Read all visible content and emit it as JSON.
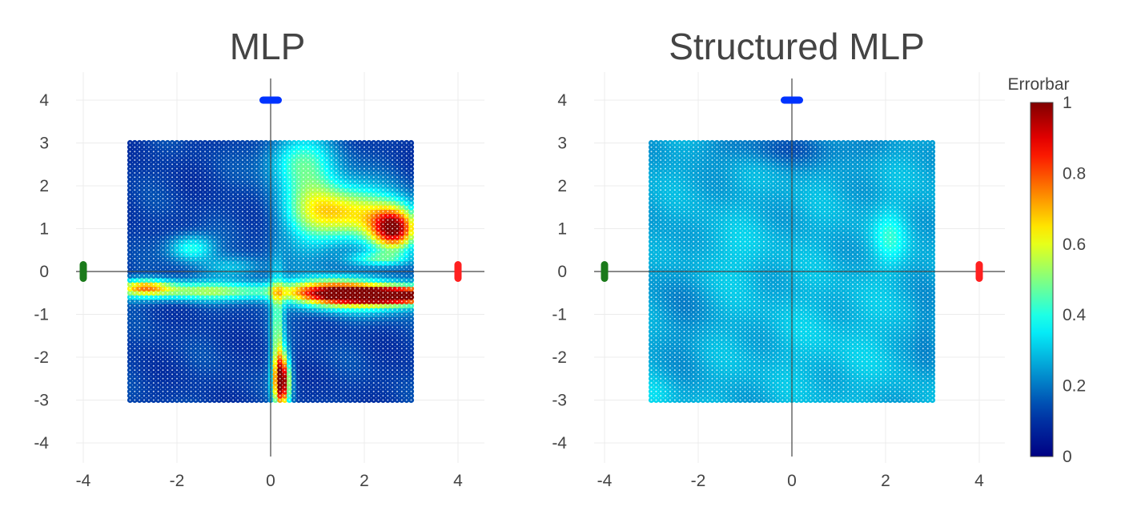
{
  "chart_data": [
    {
      "type": "heatmap",
      "title": "MLP",
      "xlim": [
        -4.4,
        4.6
      ],
      "ylim": [
        -4.3,
        4.4
      ],
      "xticks": [
        -4,
        -2,
        0,
        2,
        4
      ],
      "yticks": [
        -4,
        -3,
        -2,
        -1,
        0,
        1,
        2,
        3,
        4
      ],
      "grid": true,
      "grid_region": {
        "x": [
          -3,
          3
        ],
        "y": [
          -3,
          3
        ]
      },
      "colorscale": "jet",
      "cmin": 0,
      "cmax": 1,
      "base_value": 0.12,
      "error_features": [
        {
          "cx": 2.7,
          "cy": -0.55,
          "sx": 0.8,
          "sy": 0.14,
          "v": 0.9
        },
        {
          "cx": 1.2,
          "cy": -0.5,
          "sx": 0.6,
          "sy": 0.22,
          "v": 0.5
        },
        {
          "cx": 2.1,
          "cy": -0.55,
          "sx": 0.9,
          "sy": 0.3,
          "v": 0.35
        },
        {
          "cx": -1.4,
          "cy": -0.45,
          "sx": 1.6,
          "sy": 0.16,
          "v": 0.4
        },
        {
          "cx": -2.7,
          "cy": -0.35,
          "sx": 0.4,
          "sy": 0.13,
          "v": 0.4
        },
        {
          "cx": 2.65,
          "cy": 1.0,
          "sx": 0.35,
          "sy": 0.35,
          "v": 0.8
        },
        {
          "cx": 1.8,
          "cy": 1.4,
          "sx": 0.7,
          "sy": 0.45,
          "v": 0.45
        },
        {
          "cx": 0.9,
          "cy": 1.6,
          "sx": 0.5,
          "sy": 0.9,
          "v": 0.3
        },
        {
          "cx": 0.25,
          "cy": -2.55,
          "sx": 0.12,
          "sy": 0.45,
          "v": 0.85
        },
        {
          "cx": 0.15,
          "cy": -1.5,
          "sx": 0.1,
          "sy": 1.0,
          "v": 0.35
        },
        {
          "cx": -1.7,
          "cy": 0.55,
          "sx": 0.35,
          "sy": 0.22,
          "v": 0.3
        },
        {
          "cx": -0.8,
          "cy": 0.1,
          "sx": 0.5,
          "sy": 0.2,
          "v": 0.18
        },
        {
          "cx": 2.3,
          "cy": 0.3,
          "sx": 0.5,
          "sy": 0.12,
          "v": 0.25
        },
        {
          "cx": 0.5,
          "cy": 2.6,
          "sx": 0.5,
          "sy": 0.4,
          "v": 0.2
        }
      ],
      "markers": [
        {
          "x": 0,
          "y": 4,
          "color": "#0033ff",
          "orient": "h"
        },
        {
          "x": -4,
          "y": 0,
          "color": "#1a7a1a",
          "orient": "v"
        },
        {
          "x": 4,
          "y": 0,
          "color": "#ff2020",
          "orient": "v"
        }
      ]
    },
    {
      "type": "heatmap",
      "title": "Structured MLP",
      "xlim": [
        -4.4,
        4.6
      ],
      "ylim": [
        -4.3,
        4.4
      ],
      "xticks": [
        -4,
        -2,
        0,
        2,
        4
      ],
      "yticks": [
        -4,
        -3,
        -2,
        -1,
        0,
        1,
        2,
        3,
        4
      ],
      "grid": true,
      "grid_region": {
        "x": [
          -3,
          3
        ],
        "y": [
          -3,
          3
        ]
      },
      "colorscale": "jet",
      "cmin": 0,
      "cmax": 1,
      "base_value": 0.27,
      "error_features": [
        {
          "cx": 0,
          "cy": 2.9,
          "sx": 1.2,
          "sy": 0.3,
          "v": -0.1
        },
        {
          "cx": -2.5,
          "cy": -0.5,
          "sx": 0.4,
          "sy": 1.2,
          "v": -0.05
        },
        {
          "cx": 2.9,
          "cy": -1.5,
          "sx": 0.2,
          "sy": 0.8,
          "v": -0.06
        },
        {
          "cx": 2.1,
          "cy": 0.8,
          "sx": 0.25,
          "sy": 0.45,
          "v": 0.12
        },
        {
          "cx": -1.5,
          "cy": 0.4,
          "sx": 0.8,
          "sy": 0.5,
          "v": 0.04
        },
        {
          "cx": 1.0,
          "cy": -1.6,
          "sx": 1.2,
          "sy": 0.9,
          "v": 0.03
        },
        {
          "cx": -2.9,
          "cy": -2.9,
          "sx": 0.3,
          "sy": 0.3,
          "v": 0.05
        }
      ],
      "markers": [
        {
          "x": 0,
          "y": 4,
          "color": "#0033ff",
          "orient": "h"
        },
        {
          "x": -4,
          "y": 0,
          "color": "#1a7a1a",
          "orient": "v"
        },
        {
          "x": 4,
          "y": 0,
          "color": "#ff2020",
          "orient": "v"
        }
      ]
    }
  ],
  "colorbar": {
    "title": "Errorbar",
    "ticks": [
      0,
      0.2,
      0.4,
      0.6,
      0.8,
      1
    ],
    "tick_labels": [
      "0",
      "0.2",
      "0.4",
      "0.6",
      "0.8",
      "1"
    ]
  }
}
